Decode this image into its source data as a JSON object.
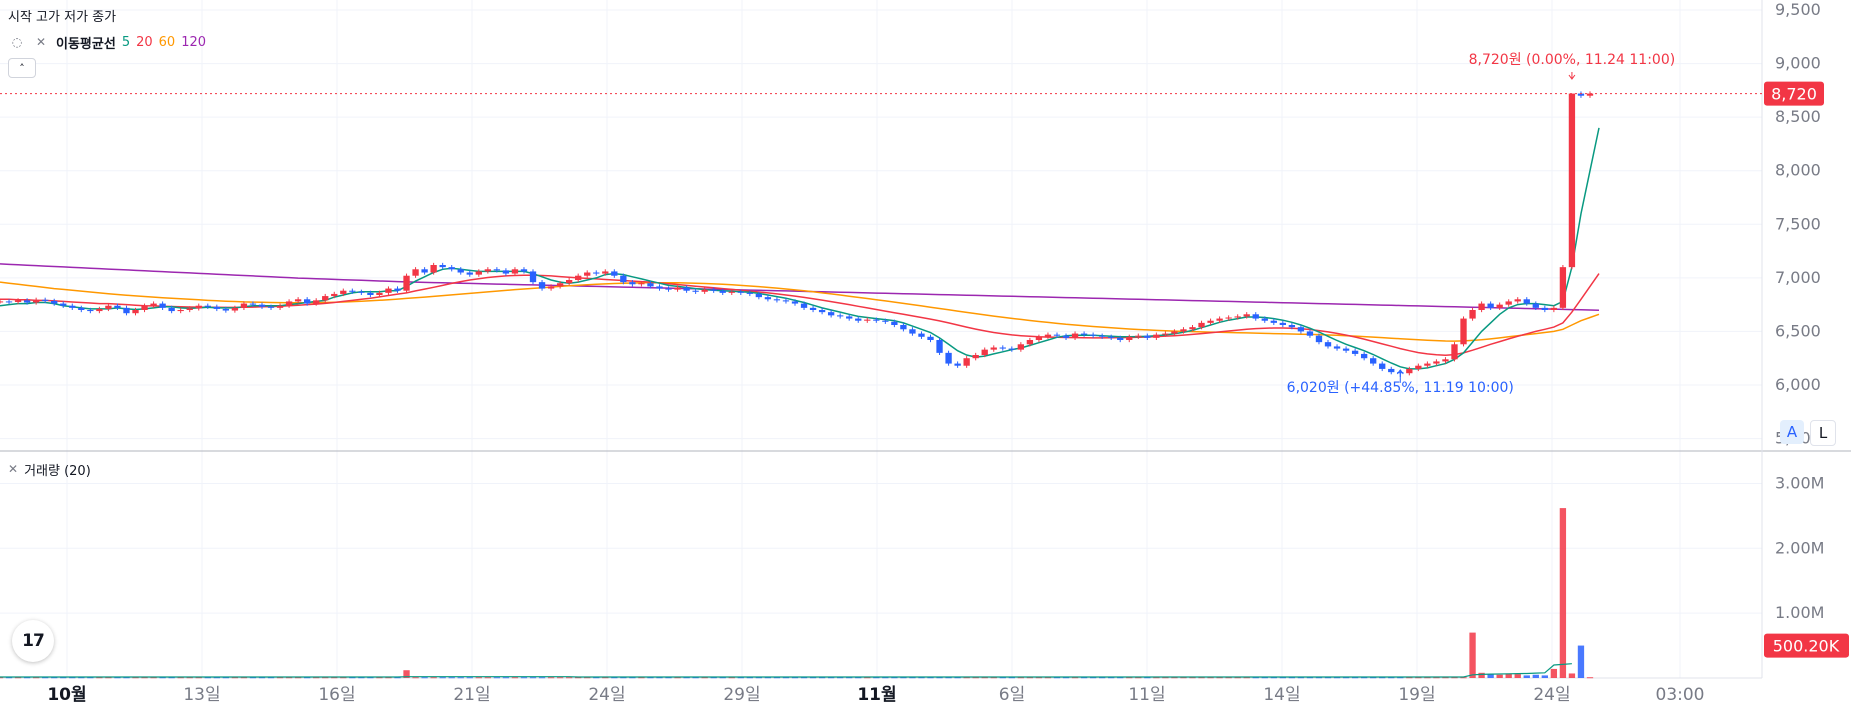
{
  "legend": {
    "ohlc_label": "시작 고가 저가 종가",
    "ma_name": "이동평균선",
    "ma_periods": [
      "5",
      "20",
      "60",
      "120"
    ],
    "eye_icon": "eye-slash-icon",
    "close_icon": "close-icon",
    "collapse_icon": "chevron-up-icon",
    "volume_label": "거래량 (20)"
  },
  "scale_buttons": {
    "auto": "A",
    "log": "L"
  },
  "logo_text": "17",
  "colors": {
    "up": "#f23645",
    "down": "#2962ff",
    "ma5": "#089981",
    "ma20": "#f23645",
    "ma60": "#ff9800",
    "ma120": "#9c27b0",
    "high_annotation": "#f23645",
    "low_annotation": "#2962ff"
  },
  "chart_data": [
    {
      "type": "candlestick",
      "title": "",
      "ylim": [
        5300,
        9500
      ],
      "y_ticks": [
        "9,500",
        "9,000",
        "8,500",
        "8,000",
        "7,500",
        "7,000",
        "6,500",
        "6,000",
        "5,500"
      ],
      "x_ticks": [
        {
          "label": "10월",
          "bold": true
        },
        {
          "label": "13일",
          "bold": false
        },
        {
          "label": "16일",
          "bold": false
        },
        {
          "label": "21일",
          "bold": false
        },
        {
          "label": "24일",
          "bold": false
        },
        {
          "label": "29일",
          "bold": false
        },
        {
          "label": "11월",
          "bold": true
        },
        {
          "label": "6일",
          "bold": false
        },
        {
          "label": "11일",
          "bold": false
        },
        {
          "label": "14일",
          "bold": false
        },
        {
          "label": "19일",
          "bold": false
        },
        {
          "label": "24일",
          "bold": false
        },
        {
          "label": "03:00",
          "bold": false
        }
      ],
      "last_price": 8720,
      "last_price_label": "8,720",
      "high_annotation": "8,720원 (0.00%, 11.24 11:00)",
      "high_value": 8720,
      "low_annotation": "6,020원 (+44.85%, 11.19 10:00)",
      "low_value": 6020,
      "close_series": [
        6780,
        6775,
        6790,
        6770,
        6795,
        6785,
        6760,
        6740,
        6720,
        6700,
        6690,
        6710,
        6740,
        6720,
        6670,
        6700,
        6740,
        6760,
        6720,
        6690,
        6700,
        6715,
        6740,
        6730,
        6710,
        6695,
        6720,
        6760,
        6750,
        6730,
        6720,
        6740,
        6780,
        6800,
        6760,
        6790,
        6830,
        6850,
        6880,
        6870,
        6860,
        6840,
        6860,
        6900,
        6880,
        7020,
        7080,
        7050,
        7120,
        7100,
        7080,
        7050,
        7030,
        7060,
        7080,
        7070,
        7040,
        7080,
        7060,
        6960,
        6900,
        6920,
        6950,
        6980,
        7020,
        7050,
        7040,
        7060,
        7020,
        6960,
        6940,
        6950,
        6920,
        6900,
        6890,
        6910,
        6880,
        6870,
        6890,
        6880,
        6860,
        6870,
        6860,
        6850,
        6820,
        6800,
        6790,
        6780,
        6760,
        6720,
        6700,
        6680,
        6650,
        6640,
        6620,
        6600,
        6610,
        6600,
        6590,
        6560,
        6520,
        6480,
        6450,
        6420,
        6300,
        6200,
        6180,
        6250,
        6280,
        6330,
        6350,
        6340,
        6330,
        6380,
        6420,
        6450,
        6470,
        6460,
        6440,
        6480,
        6470,
        6460,
        6450,
        6440,
        6420,
        6450,
        6460,
        6440,
        6470,
        6480,
        6500,
        6520,
        6540,
        6580,
        6600,
        6620,
        6630,
        6640,
        6660,
        6620,
        6600,
        6580,
        6560,
        6540,
        6500,
        6460,
        6400,
        6360,
        6340,
        6320,
        6290,
        6250,
        6200,
        6150,
        6120,
        6110,
        6150,
        6180,
        6200,
        6220,
        6240,
        6380,
        6620,
        6700,
        6760,
        6720,
        6750,
        6780,
        6800,
        6760,
        6720,
        6700,
        6720,
        7100,
        8720,
        8700,
        8720
      ],
      "ma5": [
        6740,
        6750,
        6760,
        6760,
        6770,
        6770,
        6760,
        6740,
        6730,
        6720,
        6710,
        6710,
        6710,
        6720,
        6710,
        6705,
        6710,
        6720,
        6730,
        6730,
        6720,
        6715,
        6720,
        6725,
        6720,
        6720,
        6720,
        6730,
        6740,
        6740,
        6740,
        6740,
        6750,
        6760,
        6770,
        6780,
        6790,
        6820,
        6840,
        6860,
        6870,
        6870,
        6870,
        6880,
        6880,
        6920,
        6970,
        7010,
        7050,
        7080,
        7090,
        7080,
        7070,
        7060,
        7060,
        7060,
        7060,
        7060,
        7060,
        7040,
        7010,
        6980,
        6960,
        6950,
        6960,
        6980,
        7000,
        7030,
        7040,
        7030,
        7010,
        6990,
        6970,
        6950,
        6930,
        6920,
        6910,
        6900,
        6890,
        6885,
        6880,
        6875,
        6870,
        6865,
        6855,
        6840,
        6825,
        6810,
        6790,
        6770,
        6745,
        6720,
        6700,
        6680,
        6660,
        6640,
        6630,
        6620,
        6610,
        6600,
        6580,
        6550,
        6520,
        6490,
        6440,
        6380,
        6320,
        6280,
        6260,
        6270,
        6290,
        6310,
        6330,
        6345,
        6370,
        6395,
        6420,
        6445,
        6460,
        6465,
        6465,
        6465,
        6460,
        6455,
        6450,
        6450,
        6452,
        6455,
        6460,
        6468,
        6478,
        6492,
        6510,
        6535,
        6560,
        6585,
        6605,
        6620,
        6635,
        6635,
        6630,
        6620,
        6605,
        6585,
        6560,
        6530,
        6495,
        6455,
        6415,
        6380,
        6350,
        6320,
        6285,
        6245,
        6205,
        6170,
        6150,
        6150,
        6160,
        6180,
        6200,
        6240,
        6300,
        6400,
        6500,
        6580,
        6660,
        6720,
        6750,
        6760,
        6760,
        6750,
        6740,
        6780,
        7100,
        7600,
        8000,
        8400
      ],
      "ma20": [
        6800,
        6800,
        6795,
        6795,
        6790,
        6790,
        6785,
        6780,
        6775,
        6770,
        6765,
        6760,
        6760,
        6755,
        6750,
        6745,
        6740,
        6738,
        6735,
        6733,
        6730,
        6728,
        6727,
        6726,
        6725,
        6724,
        6724,
        6725,
        6727,
        6730,
        6732,
        6735,
        6740,
        6745,
        6750,
        6755,
        6762,
        6770,
        6780,
        6790,
        6800,
        6810,
        6822,
        6835,
        6848,
        6860,
        6878,
        6895,
        6912,
        6930,
        6948,
        6965,
        6980,
        6992,
        7003,
        7012,
        7018,
        7022,
        7025,
        7025,
        7022,
        7018,
        7012,
        7006,
        7000,
        6995,
        6990,
        6985,
        6980,
        6975,
        6970,
        6965,
        6960,
        6952,
        6945,
        6938,
        6930,
        6922,
        6915,
        6908,
        6900,
        6892,
        6884,
        6876,
        6868,
        6860,
        6850,
        6840,
        6830,
        6818,
        6805,
        6792,
        6778,
        6764,
        6750,
        6735,
        6720,
        6705,
        6690,
        6675,
        6660,
        6645,
        6630,
        6615,
        6598,
        6580,
        6560,
        6540,
        6522,
        6505,
        6490,
        6478,
        6468,
        6460,
        6455,
        6450,
        6447,
        6445,
        6443,
        6442,
        6441,
        6440,
        6440,
        6441,
        6442,
        6443,
        6445,
        6448,
        6452,
        6456,
        6460,
        6466,
        6472,
        6480,
        6488,
        6496,
        6504,
        6512,
        6520,
        6526,
        6530,
        6532,
        6532,
        6530,
        6525,
        6518,
        6508,
        6496,
        6482,
        6466,
        6448,
        6428,
        6406,
        6384,
        6362,
        6340,
        6320,
        6302,
        6290,
        6282,
        6278,
        6284,
        6300,
        6325,
        6352,
        6380,
        6405,
        6430,
        6455,
        6478,
        6500,
        6520,
        6540,
        6580,
        6680,
        6800,
        6920,
        7040
      ],
      "ma60": [
        6960,
        6950,
        6940,
        6930,
        6920,
        6910,
        6900,
        6892,
        6884,
        6876,
        6868,
        6860,
        6852,
        6845,
        6838,
        6832,
        6826,
        6820,
        6815,
        6810,
        6805,
        6800,
        6795,
        6790,
        6786,
        6782,
        6779,
        6776,
        6774,
        6772,
        6770,
        6769,
        6768,
        6768,
        6768,
        6769,
        6770,
        6772,
        6775,
        6778,
        6782,
        6786,
        6791,
        6796,
        6802,
        6808,
        6814,
        6820,
        6827,
        6834,
        6841,
        6848,
        6855,
        6862,
        6869,
        6876,
        6883,
        6890,
        6896,
        6902,
        6908,
        6914,
        6920,
        6926,
        6931,
        6936,
        6940,
        6944,
        6947,
        6950,
        6952,
        6954,
        6955,
        6955,
        6955,
        6954,
        6952,
        6950,
        6947,
        6944,
        6940,
        6935,
        6930,
        6924,
        6918,
        6911,
        6904,
        6896,
        6888,
        6879,
        6870,
        6860,
        6850,
        6840,
        6829,
        6818,
        6807,
        6796,
        6785,
        6774,
        6762,
        6750,
        6738,
        6726,
        6714,
        6702,
        6690,
        6678,
        6666,
        6654,
        6643,
        6632,
        6622,
        6612,
        6602,
        6593,
        6584,
        6575,
        6567,
        6560,
        6553,
        6546,
        6540,
        6534,
        6528,
        6523,
        6518,
        6514,
        6510,
        6506,
        6503,
        6500,
        6498,
        6496,
        6494,
        6492,
        6490,
        6488,
        6486,
        6484,
        6482,
        6480,
        6478,
        6476,
        6474,
        6472,
        6470,
        6467,
        6464,
        6460,
        6456,
        6452,
        6447,
        6442,
        6437,
        6432,
        6427,
        6422,
        6418,
        6414,
        6411,
        6410,
        6412,
        6416,
        6422,
        6430,
        6440,
        6450,
        6460,
        6470,
        6480,
        6490,
        6500,
        6520,
        6560,
        6600,
        6630,
        6660
      ],
      "ma120": [
        7130,
        7126,
        7122,
        7118,
        7114,
        7110,
        7106,
        7102,
        7098,
        7094,
        7090,
        7086,
        7082,
        7078,
        7074,
        7070,
        7066,
        7062,
        7058,
        7054,
        7050,
        7046,
        7042,
        7038,
        7034,
        7030,
        7026,
        7022,
        7018,
        7014,
        7010,
        7006,
        7002,
        6998,
        6995,
        6992,
        6989,
        6986,
        6983,
        6980,
        6977,
        6974,
        6971,
        6968,
        6965,
        6962,
        6960,
        6958,
        6956,
        6954,
        6952,
        6950,
        6948,
        6946,
        6944,
        6942,
        6940,
        6938,
        6936,
        6934,
        6932,
        6930,
        6928,
        6926,
        6924,
        6922,
        6920,
        6918,
        6916,
        6914,
        6912,
        6910,
        6908,
        6906,
        6904,
        6902,
        6900,
        6898,
        6896,
        6894,
        6892,
        6890,
        6888,
        6886,
        6884,
        6882,
        6880,
        6878,
        6876,
        6874,
        6872,
        6870,
        6868,
        6866,
        6864,
        6862,
        6860,
        6858,
        6856,
        6854,
        6852,
        6850,
        6848,
        6846,
        6844,
        6842,
        6840,
        6838,
        6836,
        6834,
        6832,
        6830,
        6828,
        6826,
        6824,
        6822,
        6820,
        6818,
        6816,
        6814,
        6812,
        6810,
        6808,
        6806,
        6804,
        6802,
        6800,
        6798,
        6796,
        6794,
        6792,
        6790,
        6788,
        6786,
        6784,
        6782,
        6780,
        6778,
        6776,
        6774,
        6772,
        6770,
        6768,
        6766,
        6764,
        6762,
        6760,
        6758,
        6756,
        6754,
        6752,
        6750,
        6748,
        6746,
        6744,
        6742,
        6740,
        6738,
        6736,
        6734,
        6732,
        6730,
        6728,
        6726,
        6724,
        6722,
        6720,
        6718,
        6716,
        6714,
        6712,
        6710,
        6708,
        6706,
        6704,
        6702,
        6700,
        6698
      ]
    },
    {
      "type": "bar",
      "title": "거래량 (20)",
      "ylim": [
        0,
        3300000
      ],
      "y_ticks": [
        "3.00M",
        "2.00M",
        "1.00M"
      ],
      "last_volume_label": "500.20K",
      "last_volume": 500200,
      "spikes": [
        {
          "index": 45,
          "value": 120000
        },
        {
          "index": 163,
          "value": 700000
        },
        {
          "index": 164,
          "value": 80000
        },
        {
          "index": 165,
          "value": 60000
        },
        {
          "index": 166,
          "value": 50000
        },
        {
          "index": 167,
          "value": 70000
        },
        {
          "index": 168,
          "value": 60000
        },
        {
          "index": 169,
          "value": 40000
        },
        {
          "index": 170,
          "value": 50000
        },
        {
          "index": 171,
          "value": 40000
        },
        {
          "index": 172,
          "value": 140000
        },
        {
          "index": 173,
          "value": 2620000
        },
        {
          "index": 174,
          "value": 70000
        },
        {
          "index": 175,
          "value": 500200
        }
      ],
      "base_volume": 12000,
      "volume_ma": [
        15000,
        15000,
        15000,
        15000,
        15000,
        15000,
        15000,
        15000,
        15000,
        15000,
        15000,
        15000,
        15000,
        15000,
        15000,
        15000,
        15000,
        15000,
        15000,
        15000,
        15000,
        15000,
        15000,
        15000,
        15000,
        15000,
        15000,
        15000,
        15000,
        15000,
        15000,
        15000,
        15000,
        15000,
        15000,
        15000,
        15000,
        15000,
        15000,
        15000,
        15000,
        15000,
        15000,
        15000,
        15000,
        20000,
        20000,
        20000,
        20000,
        20000,
        20000,
        20000,
        20000,
        20000,
        20000,
        20000,
        20000,
        20000,
        20000,
        20000,
        20000,
        20000,
        20000,
        20000,
        15000,
        15000,
        15000,
        15000,
        15000,
        15000,
        15000,
        15000,
        15000,
        15000,
        15000,
        15000,
        15000,
        15000,
        15000,
        15000,
        15000,
        15000,
        15000,
        15000,
        15000,
        15000,
        15000,
        15000,
        15000,
        15000,
        15000,
        15000,
        15000,
        15000,
        15000,
        15000,
        15000,
        15000,
        15000,
        15000,
        15000,
        15000,
        15000,
        15000,
        15000,
        15000,
        15000,
        15000,
        15000,
        15000,
        15000,
        15000,
        15000,
        15000,
        15000,
        15000,
        15000,
        15000,
        15000,
        15000,
        15000,
        15000,
        15000,
        15000,
        15000,
        15000,
        15000,
        15000,
        15000,
        15000,
        15000,
        15000,
        15000,
        15000,
        15000,
        15000,
        15000,
        15000,
        15000,
        15000,
        15000,
        15000,
        15000,
        15000,
        15000,
        15000,
        15000,
        15000,
        15000,
        15000,
        15000,
        15000,
        15000,
        15000,
        15000,
        15000,
        15000,
        15000,
        15000,
        15000,
        15000,
        15000,
        15000,
        50000,
        55000,
        60000,
        62000,
        65000,
        68000,
        70000,
        75000,
        80000,
        200000,
        210000,
        220000
      ]
    }
  ]
}
